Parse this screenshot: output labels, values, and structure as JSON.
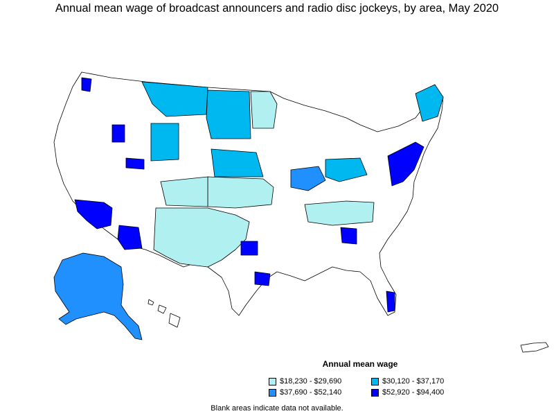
{
  "title": "Annual mean wage of broadcast announcers and radio disc jockeys, by area, May 2020",
  "legend": {
    "title": "Annual mean wage",
    "items": [
      {
        "label": "$18,230 - $29,690",
        "color": "#b0f0f0"
      },
      {
        "label": "$30,120 - $37,170",
        "color": "#00b8f0"
      },
      {
        "label": "$37,690 - $52,140",
        "color": "#2090ff"
      },
      {
        "label": "$52,920 - $94,400",
        "color": "#0000ff"
      }
    ]
  },
  "footnote": "Blank areas indicate data not available.",
  "colors": {
    "outline": "#000000",
    "no_data": "#ffffff"
  }
}
